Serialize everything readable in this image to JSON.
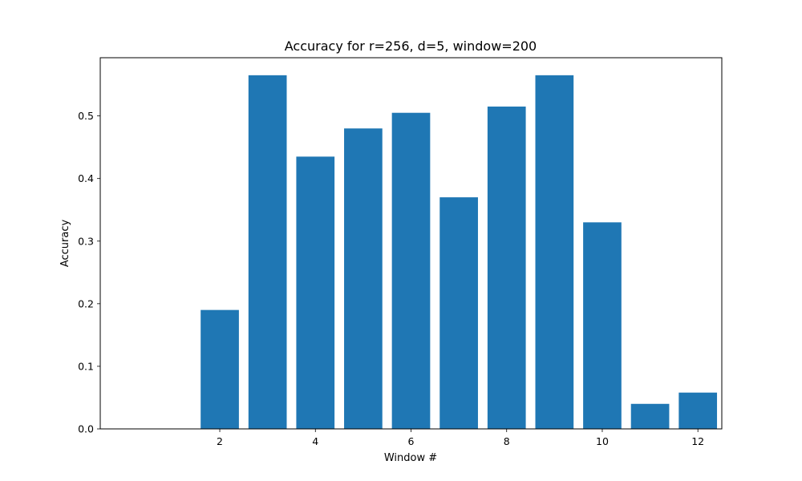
{
  "chart_data": {
    "type": "bar",
    "title": "Accuracy for r=256, d=5, window=200",
    "xlabel": "Window #",
    "ylabel": "Accuracy",
    "x": [
      1,
      2,
      3,
      4,
      5,
      6,
      7,
      8,
      9,
      10,
      11,
      12
    ],
    "values": [
      0.0,
      0.19,
      0.565,
      0.435,
      0.48,
      0.505,
      0.37,
      0.515,
      0.565,
      0.33,
      0.04,
      0.058
    ],
    "xlim": [
      -0.5,
      12.5
    ],
    "ylim": [
      0,
      0.593
    ],
    "xticks": [
      2,
      4,
      6,
      8,
      10,
      12
    ],
    "yticks": [
      0.0,
      0.1,
      0.2,
      0.3,
      0.4,
      0.5
    ],
    "ytick_labels": [
      "0.0",
      "0.1",
      "0.2",
      "0.3",
      "0.4",
      "0.5"
    ],
    "bar_color": "#1f77b4",
    "grid": false,
    "legend": "none"
  }
}
